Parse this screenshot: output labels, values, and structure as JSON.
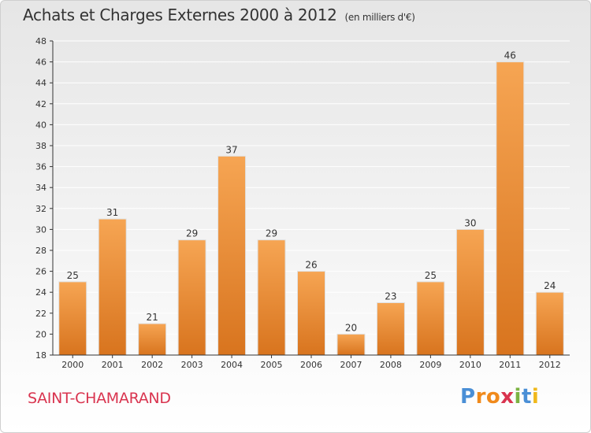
{
  "header": {
    "title": "Achats et Charges Externes 2000 à 2012",
    "subtitle": "(en milliers d'€)"
  },
  "footer": {
    "place": "SAINT-CHAMARAND",
    "logo_letters": [
      "P",
      "r",
      "o",
      "x",
      "i",
      "t",
      "i"
    ],
    "logo_colors": [
      "#4a8fd6",
      "#f08a1c",
      "#f08a1c",
      "#d9344f",
      "#7cb342",
      "#4a8fd6",
      "#f0b81c"
    ]
  },
  "colors": {
    "bar_top": "#f6a553",
    "bar_bottom": "#d8741e",
    "bar_edge": "#e1e1e1",
    "axis": "#333333",
    "grid": "#ffffff",
    "text": "#333333"
  },
  "chart_data": {
    "type": "bar",
    "title": "Achats et Charges Externes 2000 à 2012",
    "subtitle": "(en milliers d'€)",
    "categories": [
      "2000",
      "2001",
      "2002",
      "2003",
      "2004",
      "2005",
      "2006",
      "2007",
      "2008",
      "2009",
      "2010",
      "2011",
      "2012"
    ],
    "values": [
      25,
      31,
      21,
      29,
      37,
      29,
      26,
      20,
      23,
      25,
      30,
      46,
      24
    ],
    "ylim": [
      18,
      48
    ],
    "yticks": [
      18,
      20,
      22,
      24,
      26,
      28,
      30,
      32,
      34,
      36,
      38,
      40,
      42,
      44,
      46,
      48
    ],
    "xlabel": "",
    "ylabel": "",
    "grid": "horizontal",
    "data_labels": true
  }
}
